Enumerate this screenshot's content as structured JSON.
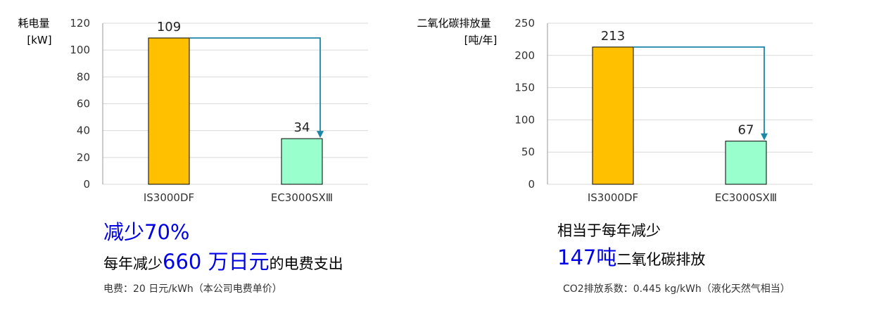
{
  "chart_data": [
    {
      "type": "bar",
      "categories": [
        "IS3000DF",
        "EC3000SXⅢ"
      ],
      "values": [
        109,
        34
      ],
      "ylabel_line1": "耗电量",
      "ylabel_line2": "[kW]",
      "ylim": [
        0,
        120
      ],
      "yticks": [
        0,
        20,
        40,
        60,
        80,
        100,
        120
      ],
      "grid": true,
      "bar_colors": [
        "#ffc000",
        "#99ffcc"
      ],
      "arrow_color": "#1a86a8"
    },
    {
      "type": "bar",
      "categories": [
        "IS3000DF",
        "EC3000SXⅢ"
      ],
      "values": [
        213,
        67
      ],
      "ylabel_line1": "二氧化碳排放量",
      "ylabel_line2": "[吨/年]",
      "ylim": [
        0,
        250
      ],
      "yticks": [
        0,
        50,
        100,
        150,
        200,
        250
      ],
      "grid": true,
      "bar_colors": [
        "#ffc000",
        "#99ffcc"
      ],
      "arrow_color": "#1a86a8"
    }
  ],
  "left_text": {
    "reduction": "减少70%",
    "yearly_prefix": "每年减少",
    "yearly_amount": "660 万日元",
    "yearly_suffix": "的电费支出",
    "note": "电费：20 日元/kWh（本公司电费单价）"
  },
  "right_text": {
    "heading": "相当于每年减少",
    "amount": "147吨",
    "suffix": "二氧化碳排放",
    "note": "CO2排放系数：0.445 kg/kWh（液化天然气相当）"
  },
  "colors": {
    "accent_blue": "#0000e6",
    "grid": "#d9d9d9"
  }
}
